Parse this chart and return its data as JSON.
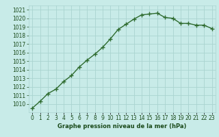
{
  "x": [
    0,
    1,
    2,
    3,
    4,
    5,
    6,
    7,
    8,
    9,
    10,
    11,
    12,
    13,
    14,
    15,
    16,
    17,
    18,
    19,
    20,
    21,
    22,
    23
  ],
  "y": [
    1009.5,
    1010.3,
    1011.2,
    1011.7,
    1012.6,
    1013.3,
    1014.3,
    1015.1,
    1015.8,
    1016.6,
    1017.6,
    1018.7,
    1019.3,
    1019.9,
    1020.4,
    1020.5,
    1020.6,
    1020.1,
    1020.0,
    1019.4,
    1019.4,
    1019.2,
    1019.2,
    1018.8
  ],
  "line_color": "#2d6a2d",
  "marker": "+",
  "marker_size": 4,
  "line_width": 1.0,
  "bg_color": "#c8ebe8",
  "grid_color": "#aad4d0",
  "xlabel": "Graphe pression niveau de la mer (hPa)",
  "xlabel_color": "#1a4a1a",
  "xlabel_fontsize": 6.0,
  "tick_color": "#1a4a1a",
  "tick_fontsize": 5.5,
  "ylim_min": 1009,
  "ylim_max": 1021.5,
  "xtick_labels": [
    "0",
    "1",
    "2",
    "3",
    "4",
    "5",
    "6",
    "7",
    "8",
    "9",
    "10",
    "11",
    "12",
    "13",
    "14",
    "15",
    "16",
    "17",
    "18",
    "19",
    "20",
    "21",
    "22",
    "23"
  ]
}
